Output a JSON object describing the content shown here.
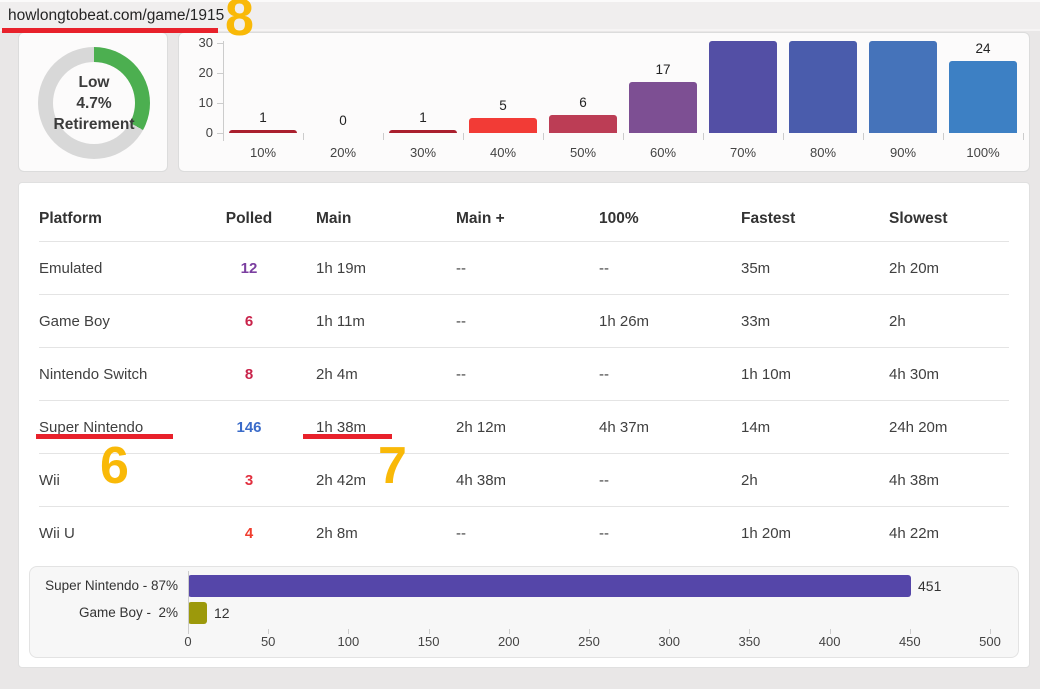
{
  "browser": {
    "url": "howlongtobeat.com/game/1915"
  },
  "gauge": {
    "label_top": "Low",
    "label_mid": "4.7%",
    "label_bottom": "Retirement",
    "arc_color": "#4caf50",
    "track_color": "#d8d8d8",
    "arc_percent": 33
  },
  "chart_data": [
    {
      "type": "bar",
      "title": "completion percentage distribution",
      "categories": [
        "10%",
        "20%",
        "30%",
        "40%",
        "50%",
        "60%",
        "70%",
        "80%",
        "90%",
        "100%"
      ],
      "values": [
        1,
        0,
        1,
        5,
        6,
        17,
        null,
        null,
        null,
        24
      ],
      "clipped_categories": [
        "70%",
        "80%",
        "90%"
      ],
      "clipped_note": "bars for 70%, 80% and 90% extend past the visible top of the chart; their values are not shown",
      "bar_colors": [
        "#aa1f2e",
        "#aa1f2e",
        "#aa1f2e",
        "#f23b36",
        "#bc3d55",
        "#7d4f93",
        "#534fa5",
        "#4a5cac",
        "#4573ba",
        "#3d80c4"
      ],
      "yticks": [
        0,
        10,
        20,
        30
      ],
      "ylim": [
        0,
        33
      ],
      "xlabel": "",
      "ylabel": "",
      "grid": false,
      "legend": false
    },
    {
      "type": "bar",
      "orientation": "horizontal",
      "title": "polled counts by platform",
      "categories": [
        "Super Nintendo - 87%",
        "Game Boy -  2%"
      ],
      "values": [
        451,
        12
      ],
      "value_labels": [
        "451",
        "12"
      ],
      "bar_colors": [
        "#5546a9",
        "#9c990b"
      ],
      "xticks": [
        0,
        50,
        100,
        150,
        200,
        250,
        300,
        350,
        400,
        450,
        500
      ],
      "xlim": [
        0,
        500
      ],
      "grid": false,
      "legend": false
    }
  ],
  "table": {
    "columns": [
      "Platform",
      "Polled",
      "Main",
      "Main +",
      "100%",
      "Fastest",
      "Slowest"
    ],
    "rows": [
      [
        "Emulated",
        "12",
        "1h 19m",
        "--",
        "--",
        "35m",
        "2h 20m"
      ],
      [
        "Game Boy",
        "6",
        "1h 11m",
        "--",
        "1h 26m",
        "33m",
        "2h"
      ],
      [
        "Nintendo Switch",
        "8",
        "2h 4m",
        "--",
        "--",
        "1h 10m",
        "4h 30m"
      ],
      [
        "Super Nintendo",
        "146",
        "1h 38m",
        "2h 12m",
        "4h 37m",
        "14m",
        "24h 20m"
      ],
      [
        "Wii",
        "3",
        "2h 42m",
        "4h 38m",
        "--",
        "2h",
        "4h 38m"
      ],
      [
        "Wii U",
        "4",
        "2h 8m",
        "--",
        "--",
        "1h 20m",
        "4h 22m"
      ]
    ],
    "polled_colors": [
      "#7b3fa0",
      "#c9234a",
      "#c9234a",
      "#3a6bc9",
      "#e23140",
      "#f03d2e"
    ]
  },
  "annotations": {
    "callout_8": "8",
    "callout_6": "6",
    "callout_7": "7",
    "highlight_color": "#f9b908",
    "underline_color": "#e8212b"
  }
}
